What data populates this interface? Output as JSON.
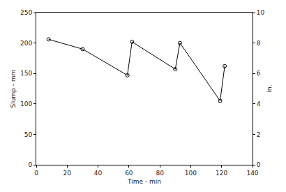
{
  "chart_data": {
    "type": "line",
    "x_label": "Time - min",
    "y_label": "Slump - mm",
    "y2_label": "in.",
    "x": [
      8,
      30,
      59,
      62,
      90,
      93,
      119,
      122
    ],
    "values": [
      206,
      190,
      147,
      202,
      157,
      200,
      105,
      162
    ],
    "color": "#000000",
    "marker": "circle-open",
    "line_style": "solid",
    "xlim": [
      0,
      140
    ],
    "xticks": [
      0,
      20,
      40,
      60,
      80,
      100,
      120,
      140
    ],
    "ylim": [
      0,
      250
    ],
    "yticks": [
      0,
      50,
      100,
      150,
      200,
      250
    ],
    "y2lim": [
      0,
      10
    ],
    "y2ticks": [
      0,
      2,
      4,
      6,
      8,
      10
    ],
    "grid": false
  }
}
